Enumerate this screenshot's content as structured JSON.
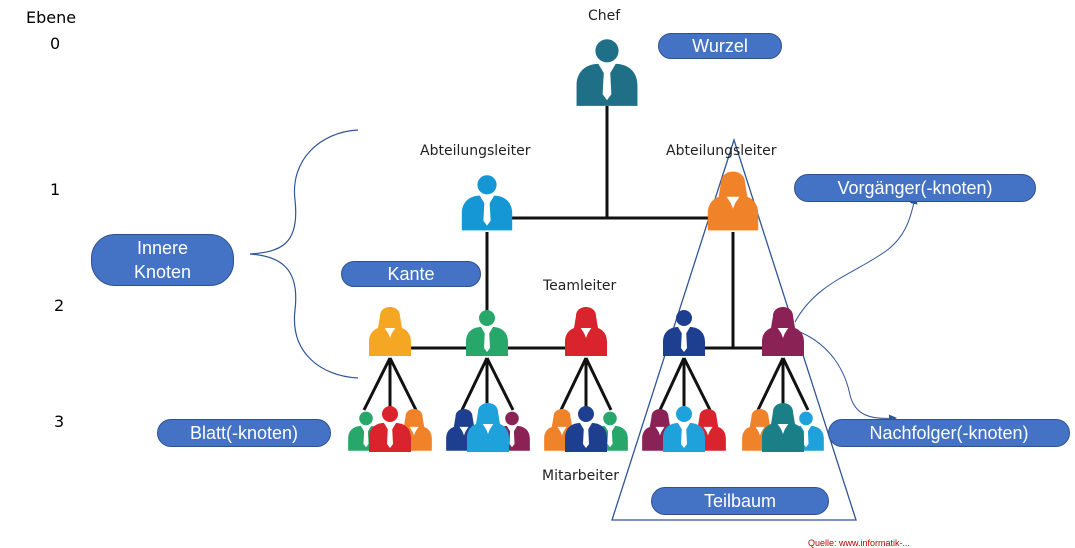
{
  "levels": {
    "header": "Ebene",
    "l0": "0",
    "l1": "1",
    "l2": "2",
    "l3": "3"
  },
  "roles": {
    "chef": "Chef",
    "abteilungsleiter_left": "Abteilungsleiter",
    "abteilungsleiter_right": "Abteilungsleiter",
    "teamleiter": "Teamleiter",
    "mitarbeiter": "Mitarbeiter"
  },
  "labels": {
    "wurzel": "Wurzel",
    "vorgaenger": "Vorgänger(-knoten)",
    "innere_line1": "Innere",
    "innere_line2": "Knoten",
    "kante": "Kante",
    "blatt": "Blatt(-knoten)",
    "nachfolger": "Nachfolger(-knoten)",
    "teilbaum": "Teilbaum"
  },
  "source_note": "Quelle: www.informatik-...",
  "colors": {
    "pill_fill": "#4472c4",
    "pill_border": "#2f528f",
    "chef": "#1f6f86",
    "blue_head": "#1597d6",
    "orange_head": "#f0832a",
    "yellow": "#f5a623",
    "green": "#27a86a",
    "red": "#d9232d",
    "navy": "#1e3f8f",
    "plum": "#8a2255",
    "sky": "#1fa2db",
    "teal": "#1a7f86",
    "line": "#111111",
    "guide": "#2f5597"
  }
}
